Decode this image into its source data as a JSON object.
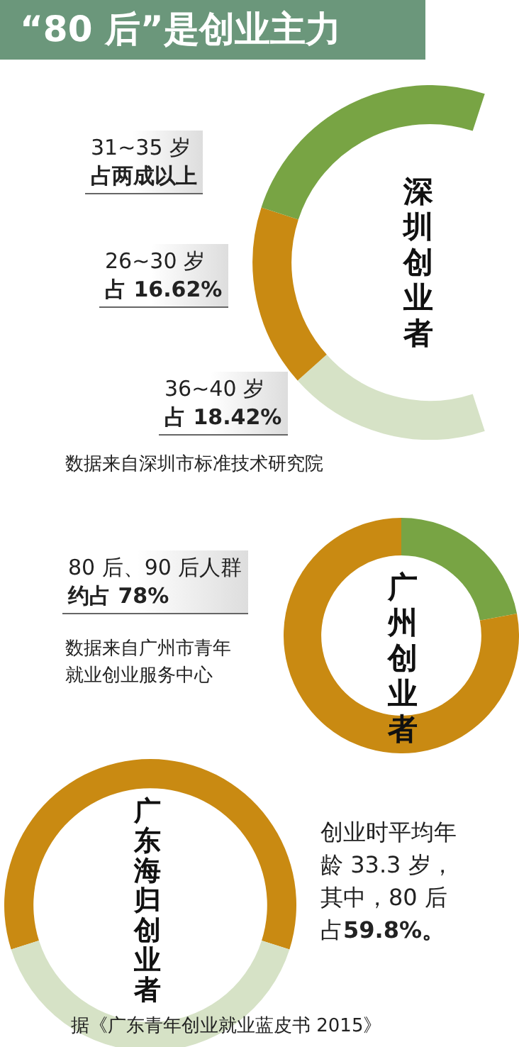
{
  "chart_data": [
    {
      "type": "donut",
      "title": "“80 后”是创业主力",
      "subtitle": "深圳创业者",
      "categories": [
        "36~40 岁",
        "26~30 岁",
        "31~35 岁"
      ],
      "values": [
        18.42,
        16.62,
        25
      ],
      "value_labels": [
        "占 18.42%",
        "占 16.62%",
        "占两成以上"
      ],
      "colors": [
        "#d6e2c6",
        "#c98a12",
        "#78a444"
      ],
      "annotations": [
        "数据来自深圳市标准技术研究院"
      ]
    },
    {
      "type": "donut",
      "title": "广州创业者",
      "categories": [
        null,
        "80 后、90 后人群"
      ],
      "values": [
        22,
        78
      ],
      "value_labels": [
        null,
        "约占 78%"
      ],
      "colors": [
        "#78a444",
        "#c98a12"
      ],
      "annotations": [
        "数据来自广州市青年就业创业服务中心"
      ]
    },
    {
      "type": "donut",
      "title": "广东海归创业者",
      "categories": [
        "创业时平均年龄 33.3 岁，其中，80 后占",
        null
      ],
      "values": [
        59.8,
        40.2
      ],
      "value_labels": [
        "59.8%。",
        null
      ],
      "colors": [
        "#c98a12",
        "#d6e2c6"
      ],
      "annotations": [
        "据《广东青年创业就业蓝皮书 2015》"
      ]
    }
  ]
}
